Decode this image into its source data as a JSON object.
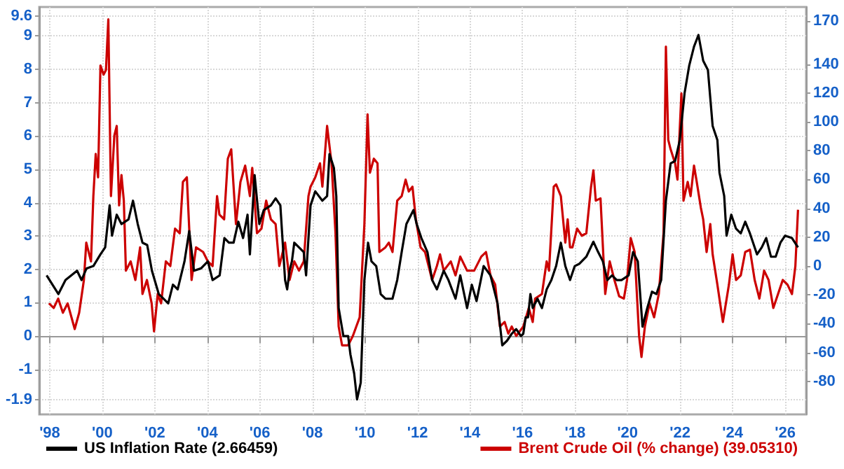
{
  "chart_data": {
    "type": "line",
    "marker": "none",
    "grid": true,
    "legend": "bottom",
    "xlim": [
      1997.6,
      2026.8
    ],
    "xticks": [
      {
        "value": 1998,
        "label": "'98"
      },
      {
        "value": 2000,
        "label": "'00"
      },
      {
        "value": 2002,
        "label": "'02"
      },
      {
        "value": 2004,
        "label": "'04"
      },
      {
        "value": 2006,
        "label": "'06"
      },
      {
        "value": 2008,
        "label": "'08"
      },
      {
        "value": 2010,
        "label": "'10"
      },
      {
        "value": 2012,
        "label": "'12"
      },
      {
        "value": 2014,
        "label": "'14"
      },
      {
        "value": 2016,
        "label": "'16"
      },
      {
        "value": 2018,
        "label": "'18"
      },
      {
        "value": 2020,
        "label": "'20"
      },
      {
        "value": 2022,
        "label": "'22"
      },
      {
        "value": 2024,
        "label": "'24"
      },
      {
        "value": 2026,
        "label": "'26"
      }
    ],
    "ylim": [
      -2.35,
      9.87
    ],
    "yticks": [
      -1.9,
      -1,
      0,
      1,
      2,
      3,
      4,
      5,
      6,
      7,
      8,
      9,
      9.6
    ],
    "y2lim": [
      -102.9,
      179.6
    ],
    "y2ticks": [
      -80,
      -60,
      -40,
      -20,
      0,
      20,
      40,
      60,
      80,
      100,
      120,
      140,
      170
    ],
    "series": [
      {
        "name": "US Inflation Rate (2.66459)",
        "color": "#000000",
        "x": [
          1997.88,
          1998.33,
          1998.6,
          1999.04,
          1999.21,
          1999.4,
          1999.66,
          1999.93,
          2000.11,
          2000.28,
          2000.37,
          2000.55,
          2000.73,
          2001.0,
          2001.17,
          2001.35,
          2001.53,
          2001.71,
          2001.89,
          2002.15,
          2002.33,
          2002.51,
          2002.69,
          2002.87,
          2003.13,
          2003.31,
          2003.49,
          2003.76,
          2004.02,
          2004.2,
          2004.47,
          2004.65,
          2004.82,
          2005.0,
          2005.18,
          2005.36,
          2005.53,
          2005.62,
          2005.8,
          2005.98,
          2006.15,
          2006.42,
          2006.6,
          2006.78,
          2006.87,
          2006.96,
          2007.04,
          2007.13,
          2007.22,
          2007.31,
          2007.49,
          2007.67,
          2007.76,
          2007.93,
          2008.11,
          2008.38,
          2008.56,
          2008.65,
          2008.82,
          2008.91,
          2009.0,
          2009.18,
          2009.36,
          2009.45,
          2009.59,
          2009.7,
          2009.84,
          2009.98,
          2010.12,
          2010.25,
          2010.43,
          2010.6,
          2010.78,
          2011.05,
          2011.23,
          2011.4,
          2011.58,
          2011.85,
          2011.97,
          2012.15,
          2012.38,
          2012.56,
          2012.74,
          2013.0,
          2013.18,
          2013.45,
          2013.63,
          2013.89,
          2014.07,
          2014.25,
          2014.52,
          2014.78,
          2015.05,
          2015.23,
          2015.41,
          2015.59,
          2015.76,
          2015.94,
          2016.03,
          2016.12,
          2016.21,
          2016.3,
          2016.39,
          2016.57,
          2016.74,
          2016.92,
          2017.1,
          2017.28,
          2017.46,
          2017.63,
          2017.81,
          2017.99,
          2018.17,
          2018.43,
          2018.7,
          2018.88,
          2019.06,
          2019.23,
          2019.41,
          2019.59,
          2019.77,
          2020.04,
          2020.21,
          2020.39,
          2020.57,
          2020.75,
          2020.93,
          2021.1,
          2021.28,
          2021.46,
          2021.64,
          2021.81,
          2021.99,
          2022.17,
          2022.35,
          2022.53,
          2022.7,
          2022.88,
          2023.06,
          2023.24,
          2023.42,
          2023.5,
          2023.68,
          2023.77,
          2023.95,
          2024.13,
          2024.31,
          2024.48,
          2024.66,
          2024.93,
          2025.11,
          2025.28,
          2025.46,
          2025.64,
          2025.82,
          2026.0,
          2026.26,
          2026.49
        ],
        "values": [
          1.82,
          1.26,
          1.68,
          1.96,
          1.68,
          2.03,
          2.1,
          2.45,
          2.66,
          3.92,
          3.01,
          3.64,
          3.36,
          3.5,
          4.06,
          3.36,
          2.8,
          2.73,
          1.96,
          1.26,
          1.12,
          0.98,
          1.54,
          1.4,
          2.24,
          3.15,
          1.96,
          2.03,
          2.24,
          1.68,
          1.82,
          2.94,
          2.8,
          2.8,
          3.43,
          2.94,
          3.64,
          2.45,
          4.83,
          3.36,
          3.78,
          3.92,
          4.13,
          3.92,
          2.8,
          1.68,
          1.4,
          1.96,
          2.24,
          2.8,
          2.66,
          2.52,
          1.82,
          3.92,
          4.34,
          4.06,
          4.2,
          5.46,
          5.04,
          4.2,
          0.84,
          0,
          0,
          -0.56,
          -1.12,
          -1.9,
          -1.4,
          1.68,
          2.8,
          2.24,
          2.1,
          1.26,
          1.12,
          1.12,
          1.68,
          2.52,
          3.36,
          3.78,
          3.36,
          2.94,
          2.52,
          1.68,
          1.4,
          1.96,
          1.68,
          1.12,
          1.82,
          0.84,
          1.54,
          1.05,
          2.1,
          1.82,
          0.98,
          -0.28,
          -0.14,
          0.07,
          0.21,
          0,
          0.07,
          0.56,
          0.56,
          1.26,
          0.84,
          1.12,
          0.84,
          1.4,
          1.68,
          2.1,
          2.8,
          2.1,
          1.68,
          2.1,
          2.17,
          2.38,
          2.83,
          2.52,
          2.24,
          1.68,
          1.82,
          1.68,
          1.68,
          1.82,
          2.52,
          2.24,
          0.28,
          0.84,
          1.33,
          1.26,
          1.68,
          4.06,
          5.18,
          5.25,
          5.88,
          7.28,
          8.12,
          8.68,
          9.03,
          8.26,
          7.98,
          6.3,
          5.88,
          4.9,
          4.2,
          3.01,
          3.64,
          3.22,
          3.08,
          3.43,
          3.08,
          2.45,
          2.66,
          2.94,
          2.38,
          2.38,
          2.8,
          3.01,
          2.94,
          2.66
        ]
      },
      {
        "name": "Brent Crude Oil (% change) (39.05310)",
        "color": "#cc0000",
        "axis": "y2",
        "x": [
          1997.97,
          1998.15,
          1998.32,
          1998.5,
          1998.68,
          1998.95,
          1999.12,
          1999.3,
          1999.39,
          1999.57,
          1999.66,
          1999.75,
          1999.84,
          1999.93,
          2000.05,
          2000.14,
          2000.23,
          2000.33,
          2000.46,
          2000.55,
          2000.64,
          2000.73,
          2000.82,
          2000.9,
          2001.08,
          2001.26,
          2001.44,
          2001.53,
          2001.7,
          2001.88,
          2001.97,
          2002.11,
          2002.24,
          2002.42,
          2002.59,
          2002.77,
          2002.95,
          2003.07,
          2003.22,
          2003.4,
          2003.57,
          2003.84,
          2004.02,
          2004.2,
          2004.37,
          2004.46,
          2004.64,
          2004.78,
          2004.91,
          2005.09,
          2005.26,
          2005.44,
          2005.62,
          2005.71,
          2005.89,
          2006.06,
          2006.24,
          2006.42,
          2006.6,
          2006.74,
          2006.96,
          2007.13,
          2007.31,
          2007.49,
          2007.67,
          2007.85,
          2007.93,
          2008.11,
          2008.29,
          2008.38,
          2008.56,
          2008.73,
          2008.88,
          2009.0,
          2009.13,
          2009.36,
          2009.54,
          2009.8,
          2009.98,
          2010.1,
          2010.19,
          2010.34,
          2010.48,
          2010.55,
          2010.78,
          2010.91,
          2011.05,
          2011.23,
          2011.4,
          2011.55,
          2011.67,
          2011.81,
          2011.94,
          2012.12,
          2012.29,
          2012.56,
          2012.74,
          2012.86,
          2013.0,
          2013.27,
          2013.45,
          2013.63,
          2013.89,
          2014.16,
          2014.43,
          2014.61,
          2014.78,
          2014.96,
          2015.14,
          2015.32,
          2015.46,
          2015.59,
          2015.76,
          2016.03,
          2016.24,
          2016.39,
          2016.48,
          2016.74,
          2016.92,
          2017.01,
          2017.19,
          2017.28,
          2017.46,
          2017.63,
          2017.72,
          2017.81,
          2017.9,
          2018.08,
          2018.26,
          2018.43,
          2018.61,
          2018.7,
          2018.79,
          2018.97,
          2019.15,
          2019.32,
          2019.5,
          2019.68,
          2019.86,
          2019.98,
          2020.12,
          2020.27,
          2020.44,
          2020.53,
          2020.66,
          2020.84,
          2021.01,
          2021.19,
          2021.37,
          2021.46,
          2021.55,
          2021.64,
          2021.81,
          2021.9,
          2022.05,
          2022.13,
          2022.29,
          2022.4,
          2022.53,
          2022.62,
          2022.79,
          2022.88,
          2023.01,
          2023.15,
          2023.24,
          2023.42,
          2023.63,
          2023.86,
          2024.0,
          2024.13,
          2024.31,
          2024.48,
          2024.66,
          2024.84,
          2025.02,
          2025.2,
          2025.37,
          2025.55,
          2025.73,
          2025.91,
          2026.09,
          2026.26,
          2026.39,
          2026.49
        ],
        "values": [
          -25.9,
          -29.1,
          -22.6,
          -32.4,
          -25.9,
          -43.7,
          -32.4,
          -9.7,
          16.2,
          3.2,
          48.5,
          77.7,
          61.5,
          139,
          132.7,
          135.9,
          171,
          48.5,
          90.6,
          97.1,
          42,
          63.1,
          45.3,
          -3.2,
          3.2,
          -9.7,
          12.9,
          -19.4,
          -9.7,
          -25.9,
          -45.3,
          -19.4,
          -25.9,
          3.2,
          0,
          25.9,
          22.7,
          58.3,
          61.5,
          -9.7,
          12.9,
          9.7,
          3.2,
          0,
          48.5,
          35.6,
          32.4,
          74.4,
          80.9,
          29.1,
          58.3,
          69.6,
          48.5,
          68,
          22.7,
          25.9,
          45.3,
          32.4,
          29.1,
          0,
          16.2,
          -9.7,
          3.2,
          -3.2,
          3.2,
          48.5,
          55,
          61.5,
          71.2,
          55,
          97.1,
          71.2,
          22.7,
          -42,
          -55,
          -55,
          -48.5,
          -35.6,
          29.1,
          105.2,
          64.7,
          74.4,
          71.2,
          9.7,
          12.9,
          16.2,
          9.7,
          45.3,
          48.5,
          59.9,
          51.7,
          55,
          32.4,
          12.9,
          9.7,
          -9.7,
          0,
          8.1,
          -3.2,
          3.2,
          -6.5,
          6.5,
          -3.2,
          -3.2,
          6.5,
          9.7,
          -6.5,
          -12.9,
          -42,
          -38.8,
          -46.9,
          -42,
          -48.5,
          -42,
          -29.1,
          -38.8,
          -22.6,
          -19.4,
          3.2,
          -3.2,
          55,
          56.6,
          48.5,
          16.2,
          32.4,
          12.9,
          12.9,
          25.9,
          21,
          22.7,
          55,
          66.3,
          45.3,
          46.9,
          -19.4,
          3.2,
          -9.7,
          -21,
          -22.6,
          -9.7,
          19.4,
          9.7,
          -48.5,
          -63.1,
          -42,
          -25.9,
          -35.6,
          -19.4,
          22.7,
          152.1,
          87.4,
          80.9,
          71.2,
          59.9,
          119.7,
          45.3,
          58.3,
          48.5,
          69.6,
          59.9,
          40.5,
          32.4,
          9.7,
          29.1,
          8.1,
          -12.9,
          -38.8,
          -12.9,
          8.1,
          -9.7,
          -6.5,
          9.7,
          11.3,
          -9.7,
          -22.6,
          -3.2,
          -9.7,
          -29.1,
          -19.4,
          -9.7,
          -12.9,
          -19.4,
          0,
          39.05
        ]
      }
    ]
  }
}
